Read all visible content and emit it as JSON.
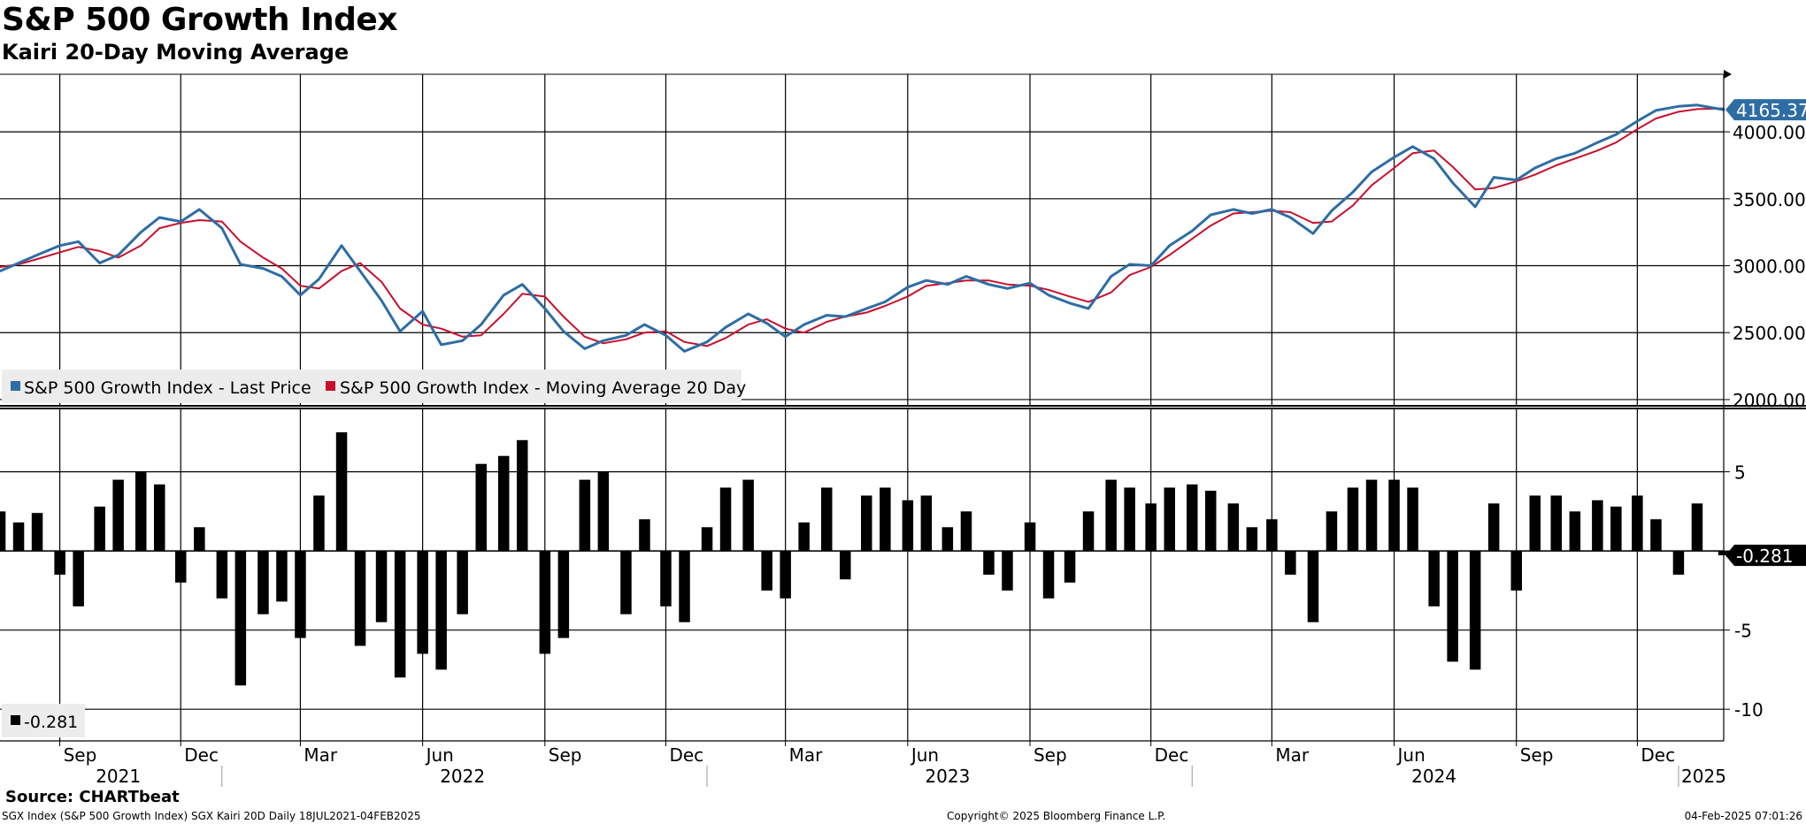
{
  "title": "S&P 500 Growth Index",
  "subtitle": "Kairi 20-Day Moving Average",
  "source": "Source: CHARTbeat",
  "footer": {
    "left": "SGX Index (S&P 500 Growth Index) SGX Kairi 20D  Daily 18JUL2021-04FEB2025",
    "center": "Copyright© 2025 Bloomberg Finance L.P.",
    "right": "04-Feb-2025 07:01:26"
  },
  "colors": {
    "price": "#2e6da4",
    "ma": "#c8102e",
    "bars": "#000000",
    "grid": "#000000",
    "price_badge": "#2e6da4",
    "kairi_badge": "#000000"
  },
  "chart_data": [
    {
      "type": "line",
      "name": "upper-panel",
      "ylim": [
        1960,
        4430
      ],
      "yticks": [
        2000,
        2500,
        3000,
        3500,
        4000
      ],
      "ytick_labels": [
        "2000.00",
        "2500.00",
        "3000.00",
        "3500.00",
        "4000.00"
      ],
      "last_value_label": "4165.37",
      "x_range": [
        "2021-07-18",
        "2025-02-04"
      ],
      "series": [
        {
          "name": "S&P 500 Growth Index - Last Price",
          "x": [
            "2021-07-18",
            "2021-08-01",
            "2021-08-15",
            "2021-09-01",
            "2021-09-15",
            "2021-10-01",
            "2021-10-15",
            "2021-11-01",
            "2021-11-15",
            "2021-12-01",
            "2021-12-15",
            "2022-01-01",
            "2022-01-15",
            "2022-02-01",
            "2022-02-15",
            "2022-03-01",
            "2022-03-15",
            "2022-04-01",
            "2022-04-15",
            "2022-05-01",
            "2022-05-15",
            "2022-06-01",
            "2022-06-15",
            "2022-07-01",
            "2022-07-15",
            "2022-08-01",
            "2022-08-15",
            "2022-09-01",
            "2022-09-15",
            "2022-10-01",
            "2022-10-15",
            "2022-11-01",
            "2022-11-15",
            "2022-12-01",
            "2022-12-15",
            "2023-01-01",
            "2023-01-15",
            "2023-02-01",
            "2023-02-15",
            "2023-03-01",
            "2023-03-15",
            "2023-04-01",
            "2023-04-15",
            "2023-05-01",
            "2023-05-15",
            "2023-06-01",
            "2023-06-15",
            "2023-07-01",
            "2023-07-15",
            "2023-08-01",
            "2023-08-15",
            "2023-09-01",
            "2023-09-15",
            "2023-10-01",
            "2023-10-15",
            "2023-11-01",
            "2023-11-15",
            "2023-12-01",
            "2023-12-15",
            "2024-01-01",
            "2024-01-15",
            "2024-02-01",
            "2024-02-15",
            "2024-03-01",
            "2024-03-15",
            "2024-04-01",
            "2024-04-15",
            "2024-05-01",
            "2024-05-15",
            "2024-06-01",
            "2024-06-15",
            "2024-07-01",
            "2024-07-15",
            "2024-08-01",
            "2024-08-15",
            "2024-09-01",
            "2024-09-15",
            "2024-10-01",
            "2024-10-15",
            "2024-11-01",
            "2024-11-15",
            "2024-12-01",
            "2024-12-15",
            "2025-01-01",
            "2025-01-15",
            "2025-02-04"
          ],
          "values": [
            2960,
            3020,
            3080,
            3150,
            3180,
            3020,
            3080,
            3250,
            3360,
            3330,
            3420,
            3280,
            3010,
            2980,
            2920,
            2780,
            2900,
            3150,
            2960,
            2740,
            2510,
            2660,
            2410,
            2440,
            2560,
            2780,
            2860,
            2680,
            2510,
            2380,
            2440,
            2480,
            2560,
            2480,
            2360,
            2430,
            2540,
            2640,
            2570,
            2470,
            2560,
            2630,
            2620,
            2680,
            2730,
            2840,
            2890,
            2860,
            2920,
            2860,
            2830,
            2870,
            2780,
            2720,
            2680,
            2920,
            3010,
            3000,
            3150,
            3260,
            3380,
            3420,
            3390,
            3420,
            3360,
            3240,
            3410,
            3550,
            3700,
            3810,
            3890,
            3800,
            3620,
            3440,
            3660,
            3640,
            3730,
            3800,
            3840,
            3920,
            3980,
            4080,
            4160,
            4190,
            4200,
            4165.37
          ]
        },
        {
          "name": "S&P 500 Growth Index - Moving Average 20 Day",
          "x": [
            "2021-07-18",
            "2021-08-01",
            "2021-08-15",
            "2021-09-01",
            "2021-09-15",
            "2021-10-01",
            "2021-10-15",
            "2021-11-01",
            "2021-11-15",
            "2021-12-01",
            "2021-12-15",
            "2022-01-01",
            "2022-01-15",
            "2022-02-01",
            "2022-02-15",
            "2022-03-01",
            "2022-03-15",
            "2022-04-01",
            "2022-04-15",
            "2022-05-01",
            "2022-05-15",
            "2022-06-01",
            "2022-06-15",
            "2022-07-01",
            "2022-07-15",
            "2022-08-01",
            "2022-08-15",
            "2022-09-01",
            "2022-09-15",
            "2022-10-01",
            "2022-10-15",
            "2022-11-01",
            "2022-11-15",
            "2022-12-01",
            "2022-12-15",
            "2023-01-01",
            "2023-01-15",
            "2023-02-01",
            "2023-02-15",
            "2023-03-01",
            "2023-03-15",
            "2023-04-01",
            "2023-04-15",
            "2023-05-01",
            "2023-05-15",
            "2023-06-01",
            "2023-06-15",
            "2023-07-01",
            "2023-07-15",
            "2023-08-01",
            "2023-08-15",
            "2023-09-01",
            "2023-09-15",
            "2023-10-01",
            "2023-10-15",
            "2023-11-01",
            "2023-11-15",
            "2023-12-01",
            "2023-12-15",
            "2024-01-01",
            "2024-01-15",
            "2024-02-01",
            "2024-02-15",
            "2024-03-01",
            "2024-03-15",
            "2024-04-01",
            "2024-04-15",
            "2024-05-01",
            "2024-05-15",
            "2024-06-01",
            "2024-06-15",
            "2024-07-01",
            "2024-07-15",
            "2024-08-01",
            "2024-08-15",
            "2024-09-01",
            "2024-09-15",
            "2024-10-01",
            "2024-10-15",
            "2024-11-01",
            "2024-11-15",
            "2024-12-01",
            "2024-12-15",
            "2025-01-01",
            "2025-01-15",
            "2025-02-04"
          ],
          "values": [
            2990,
            3010,
            3050,
            3100,
            3140,
            3110,
            3060,
            3150,
            3280,
            3320,
            3340,
            3330,
            3180,
            3060,
            2980,
            2850,
            2830,
            2960,
            3020,
            2880,
            2680,
            2560,
            2530,
            2470,
            2480,
            2640,
            2790,
            2770,
            2620,
            2470,
            2420,
            2450,
            2500,
            2510,
            2430,
            2400,
            2460,
            2560,
            2600,
            2530,
            2500,
            2580,
            2620,
            2650,
            2700,
            2770,
            2850,
            2870,
            2890,
            2890,
            2860,
            2850,
            2820,
            2770,
            2730,
            2800,
            2930,
            2990,
            3080,
            3200,
            3300,
            3390,
            3400,
            3410,
            3400,
            3320,
            3330,
            3450,
            3600,
            3730,
            3840,
            3860,
            3740,
            3570,
            3580,
            3630,
            3680,
            3750,
            3800,
            3860,
            3920,
            4020,
            4100,
            4150,
            4170,
            4175
          ]
        }
      ]
    },
    {
      "type": "bar",
      "name": "lower-panel",
      "series_name": "-0.281",
      "ylim": [
        -12,
        9
      ],
      "yticks": [
        -10,
        -5,
        0,
        5
      ],
      "ytick_labels": [
        "-10",
        "-5",
        "",
        "5"
      ],
      "last_value_label": "-0.281",
      "x": [
        "2021-07-18",
        "2021-08-01",
        "2021-08-15",
        "2021-09-01",
        "2021-09-15",
        "2021-10-01",
        "2021-10-15",
        "2021-11-01",
        "2021-11-15",
        "2021-12-01",
        "2021-12-15",
        "2022-01-01",
        "2022-01-15",
        "2022-02-01",
        "2022-02-15",
        "2022-03-01",
        "2022-03-15",
        "2022-04-01",
        "2022-04-15",
        "2022-05-01",
        "2022-05-15",
        "2022-06-01",
        "2022-06-15",
        "2022-07-01",
        "2022-07-15",
        "2022-08-01",
        "2022-08-15",
        "2022-09-01",
        "2022-09-15",
        "2022-10-01",
        "2022-10-15",
        "2022-11-01",
        "2022-11-15",
        "2022-12-01",
        "2022-12-15",
        "2023-01-01",
        "2023-01-15",
        "2023-02-01",
        "2023-02-15",
        "2023-03-01",
        "2023-03-15",
        "2023-04-01",
        "2023-04-15",
        "2023-05-01",
        "2023-05-15",
        "2023-06-01",
        "2023-06-15",
        "2023-07-01",
        "2023-07-15",
        "2023-08-01",
        "2023-08-15",
        "2023-09-01",
        "2023-09-15",
        "2023-10-01",
        "2023-10-15",
        "2023-11-01",
        "2023-11-15",
        "2023-12-01",
        "2023-12-15",
        "2024-01-01",
        "2024-01-15",
        "2024-02-01",
        "2024-02-15",
        "2024-03-01",
        "2024-03-15",
        "2024-04-01",
        "2024-04-15",
        "2024-05-01",
        "2024-05-15",
        "2024-06-01",
        "2024-06-15",
        "2024-07-01",
        "2024-07-15",
        "2024-08-01",
        "2024-08-15",
        "2024-09-01",
        "2024-09-15",
        "2024-10-01",
        "2024-10-15",
        "2024-11-01",
        "2024-11-15",
        "2024-12-01",
        "2024-12-15",
        "2025-01-01",
        "2025-01-15",
        "2025-02-04"
      ],
      "values": [
        2.5,
        1.8,
        2.4,
        -1.5,
        -3.5,
        2.8,
        4.5,
        5.0,
        4.2,
        -2.0,
        1.5,
        -3.0,
        -8.5,
        -4.0,
        -3.2,
        -5.5,
        3.5,
        7.5,
        -6.0,
        -4.5,
        -8.0,
        -6.5,
        -7.5,
        -4.0,
        5.5,
        6.0,
        7.0,
        -6.5,
        -5.5,
        4.5,
        5.0,
        -4.0,
        2.0,
        -3.5,
        -4.5,
        1.5,
        4.0,
        4.5,
        -2.5,
        -3.0,
        1.8,
        4.0,
        -1.8,
        3.5,
        4.0,
        3.2,
        3.5,
        1.5,
        2.5,
        -1.5,
        -2.5,
        1.8,
        -3.0,
        -2.0,
        2.5,
        4.5,
        4.0,
        3.0,
        4.0,
        4.2,
        3.8,
        3.0,
        1.5,
        2.0,
        -1.5,
        -4.5,
        2.5,
        4.0,
        4.5,
        4.5,
        4.0,
        -3.5,
        -7.0,
        -7.5,
        3.0,
        -2.5,
        3.5,
        3.5,
        2.5,
        3.2,
        2.8,
        3.5,
        2.0,
        -1.5,
        3.0,
        -0.281
      ]
    }
  ],
  "x_axis": {
    "month_ticks": [
      {
        "date": "2021-09-01",
        "label": "Sep"
      },
      {
        "date": "2021-12-01",
        "label": "Dec"
      },
      {
        "date": "2022-03-01",
        "label": "Mar"
      },
      {
        "date": "2022-06-01",
        "label": "Jun"
      },
      {
        "date": "2022-09-01",
        "label": "Sep"
      },
      {
        "date": "2022-12-01",
        "label": "Dec"
      },
      {
        "date": "2023-03-01",
        "label": "Mar"
      },
      {
        "date": "2023-06-01",
        "label": "Jun"
      },
      {
        "date": "2023-09-01",
        "label": "Sep"
      },
      {
        "date": "2023-12-01",
        "label": "Dec"
      },
      {
        "date": "2024-03-01",
        "label": "Mar"
      },
      {
        "date": "2024-06-01",
        "label": "Jun"
      },
      {
        "date": "2024-09-01",
        "label": "Sep"
      },
      {
        "date": "2024-12-01",
        "label": "Dec"
      }
    ],
    "year_labels": [
      {
        "date": "2021-10-15",
        "label": "2021"
      },
      {
        "date": "2022-07-01",
        "label": "2022"
      },
      {
        "date": "2023-07-01",
        "label": "2023"
      },
      {
        "date": "2024-07-01",
        "label": "2024"
      },
      {
        "date": "2025-01-20",
        "label": "2025"
      }
    ],
    "year_boundaries": [
      "2022-01-01",
      "2023-01-01",
      "2024-01-01",
      "2025-01-01"
    ]
  }
}
